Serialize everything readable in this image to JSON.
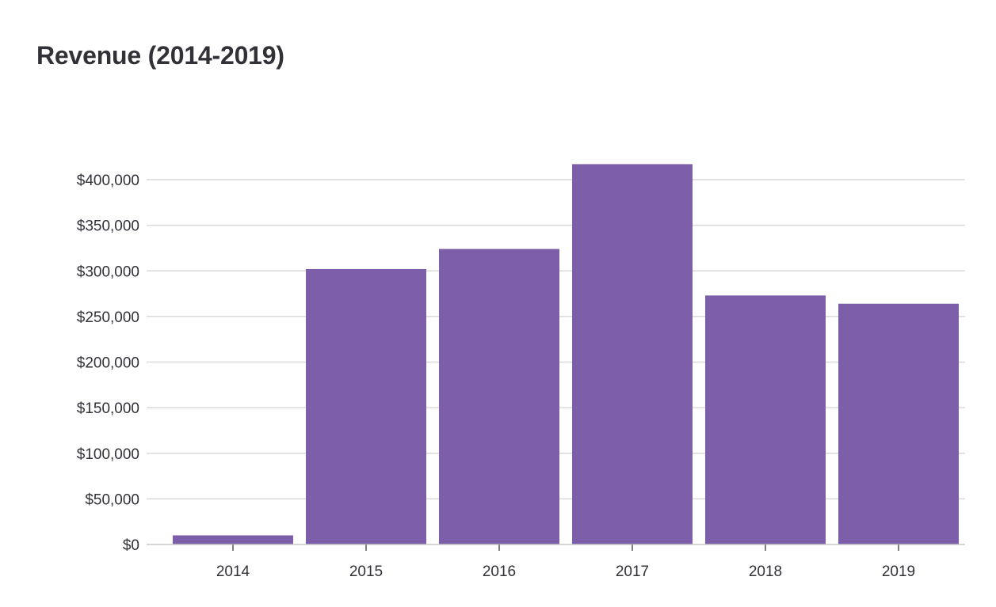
{
  "chart_data": {
    "type": "bar",
    "title": "Revenue (2014-2019)",
    "xlabel": "",
    "ylabel": "",
    "categories": [
      "2014",
      "2015",
      "2016",
      "2017",
      "2018",
      "2019"
    ],
    "values": [
      10000,
      302000,
      324000,
      417000,
      273000,
      264000
    ],
    "ylim": [
      0,
      400000
    ],
    "yticks": [
      0,
      50000,
      100000,
      150000,
      200000,
      250000,
      300000,
      350000,
      400000
    ],
    "ytick_labels": [
      "$0",
      "$50,000",
      "$100,000",
      "$150,000",
      "$200,000",
      "$250,000",
      "$300,000",
      "$350,000",
      "$400,000"
    ],
    "grid": true,
    "legend": "none",
    "bar_color": "#7d5ea9"
  }
}
